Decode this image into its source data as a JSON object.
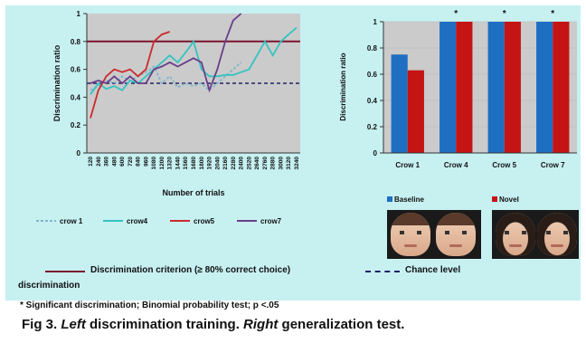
{
  "left_chart": {
    "ylabel": "Discrimination ratio",
    "xlabel": "Number of trials",
    "y_ticks": [
      "0",
      "0.2",
      "0.4",
      "0.6",
      "0.8",
      "1"
    ],
    "x_ticks": [
      "120",
      "240",
      "360",
      "480",
      "600",
      "720",
      "840",
      "960",
      "1080",
      "1200",
      "1320",
      "1440",
      "1560",
      "1680",
      "1800",
      "1920",
      "2040",
      "2160",
      "2280",
      "2400",
      "2520",
      "2640",
      "2760",
      "2880",
      "3000",
      "3120",
      "3240"
    ],
    "legend": [
      "crow 1",
      "crow4",
      "crow5",
      "crow7"
    ],
    "criterion": 0.8,
    "chance": 0.5
  },
  "right_chart": {
    "ylabel": "Discrimination ratio",
    "y_ticks": [
      "0",
      "0.2",
      "0.4",
      "0.6",
      "0.8",
      "1"
    ],
    "categories": [
      "Crow 1",
      "Crow 4",
      "Crow 5",
      "Crow 7"
    ],
    "star": "*",
    "legend": [
      "Baseline",
      "Novel"
    ]
  },
  "captions": {
    "criterion": "Discrimination criterion (≥ 80% correct choice)",
    "chance": "Chance level",
    "discrimination": "discrimination",
    "significant": "*     Significant discrimination; Binomial probability test; p <.05",
    "fig_prefix": "Fig 3.",
    "fig_left": "Left",
    "fig_mid": "discrimination training.",
    "fig_right": "Right",
    "fig_end": "generalization test."
  },
  "colors": {
    "panel_bg": "#c7f0f1",
    "plot_bg": "#cbcbcb",
    "crow1": "#7fb6c9",
    "crow4": "#34c3c0",
    "crow5": "#cc2a2a",
    "crow7": "#6a3d8a",
    "baseline": "#1e6fc2",
    "novel": "#c41414",
    "criterion": "#7a1430",
    "chance": "#222266"
  },
  "chart_data": [
    {
      "type": "line",
      "xlabel": "Number of trials",
      "ylabel": "Discrimination ratio",
      "ylim": [
        0,
        1
      ],
      "x": [
        120,
        240,
        360,
        480,
        600,
        720,
        840,
        960,
        1080,
        1200,
        1320,
        1440,
        1560,
        1680,
        1800,
        1920,
        2040,
        2160,
        2280,
        2400,
        2520,
        2640,
        2760,
        2880,
        3000,
        3120,
        3240
      ],
      "series": [
        {
          "name": "crow 1",
          "values": [
            0.45,
            0.48,
            0.52,
            0.5,
            0.55,
            0.52,
            0.55,
            0.58,
            0.62,
            0.5,
            0.55,
            0.47,
            0.5,
            0.48,
            0.5,
            0.45,
            0.5,
            0.55,
            0.6,
            0.65,
            null,
            null,
            null,
            null,
            null,
            null,
            null
          ]
        },
        {
          "name": "crow4",
          "values": [
            0.42,
            0.5,
            0.46,
            0.48,
            0.45,
            0.52,
            0.5,
            0.55,
            0.6,
            0.65,
            0.7,
            0.65,
            0.72,
            0.8,
            0.6,
            0.55,
            0.55,
            0.56,
            0.56,
            0.58,
            0.6,
            0.7,
            0.8,
            0.7,
            0.8,
            0.85,
            0.9
          ]
        },
        {
          "name": "crow5",
          "values": [
            0.25,
            0.45,
            0.55,
            0.6,
            0.58,
            0.6,
            0.55,
            0.6,
            0.8,
            0.85,
            0.87,
            null,
            null,
            null,
            null,
            null,
            null,
            null,
            null,
            null,
            null,
            null,
            null,
            null,
            null,
            null,
            null
          ]
        },
        {
          "name": "crow7",
          "values": [
            0.5,
            0.52,
            0.5,
            0.55,
            0.5,
            0.55,
            0.5,
            0.5,
            0.6,
            0.62,
            0.65,
            0.62,
            0.65,
            0.68,
            0.65,
            0.45,
            0.6,
            0.8,
            0.95,
            1.0,
            null,
            null,
            null,
            null,
            null,
            null,
            null
          ]
        }
      ],
      "annotations": [
        "Criterion line at 0.8",
        "Chance line at 0.5"
      ]
    },
    {
      "type": "bar",
      "ylabel": "Discrimination ratio",
      "ylim": [
        0,
        1
      ],
      "categories": [
        "Crow 1",
        "Crow 4",
        "Crow 5",
        "Crow 7"
      ],
      "series": [
        {
          "name": "Baseline",
          "values": [
            0.75,
            1.0,
            1.0,
            1.0
          ]
        },
        {
          "name": "Novel",
          "values": [
            0.63,
            1.0,
            1.0,
            1.0
          ]
        }
      ],
      "significant": [
        false,
        true,
        true,
        true
      ]
    }
  ]
}
